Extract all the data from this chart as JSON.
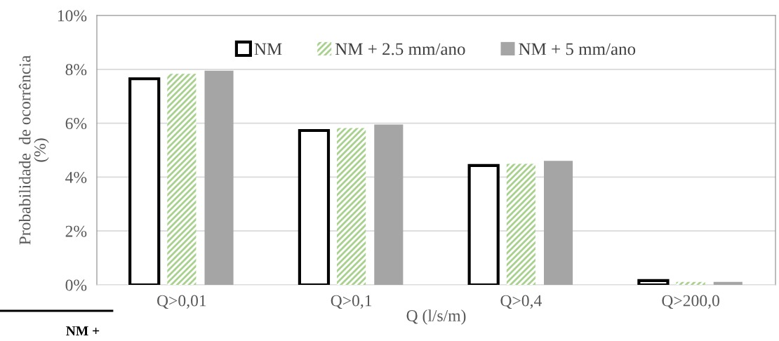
{
  "chart_data": {
    "type": "bar",
    "categories": [
      "Q>0,01",
      "Q>0,1",
      "Q>0,4",
      "Q>200,0"
    ],
    "xlabel": "Q (l/s/m)",
    "ylabel": "Probabilidade  de ocorrência\n(%)",
    "series": [
      {
        "name": "NM",
        "color": "#000000",
        "values": [
          7.65,
          5.73,
          4.43,
          0.16
        ]
      },
      {
        "name": "NM + 2.5 mm/ano",
        "color": "#a9d18e",
        "values": [
          7.83,
          5.82,
          4.49,
          0.11
        ]
      },
      {
        "name": "NM + 5 mm/ano",
        "color": "#a5a5a5",
        "values": [
          7.95,
          5.95,
          4.6,
          0.11
        ]
      }
    ],
    "ylim": [
      0,
      10
    ],
    "yticks": [
      {
        "value": 0,
        "label": "0%"
      },
      {
        "value": 2,
        "label": "2%"
      },
      {
        "value": 4,
        "label": "4%"
      },
      {
        "value": 6,
        "label": "6%"
      },
      {
        "value": 8,
        "label": "8%"
      },
      {
        "value": 10,
        "label": "10%"
      }
    ],
    "grid": "y",
    "legend": "top",
    "annotations": [
      "NM +"
    ]
  }
}
